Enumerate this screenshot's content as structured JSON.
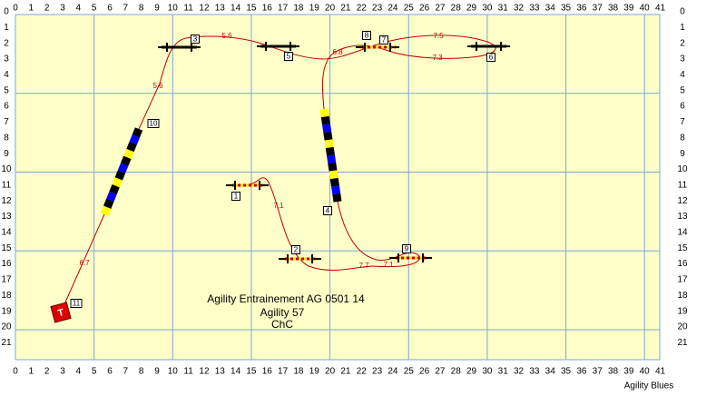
{
  "axis": {
    "x_labels": [
      0,
      1,
      2,
      3,
      4,
      5,
      6,
      7,
      8,
      9,
      10,
      11,
      12,
      13,
      14,
      15,
      16,
      17,
      18,
      19,
      20,
      21,
      22,
      23,
      24,
      25,
      26,
      27,
      28,
      29,
      30,
      31,
      32,
      33,
      34,
      35,
      36,
      37,
      38,
      39,
      40,
      41
    ],
    "y_labels": [
      0,
      1,
      2,
      3,
      4,
      5,
      6,
      7,
      8,
      9,
      10,
      11,
      12,
      13,
      14,
      15,
      16,
      17,
      18,
      19,
      20,
      21
    ]
  },
  "start_label": "T",
  "obstacles": [
    "1",
    "2",
    "3",
    "4",
    "5",
    "6",
    "7",
    "8",
    "9",
    "10",
    "11"
  ],
  "distances": [
    "5.6",
    "5.6",
    "6.7",
    "6.8",
    "7.5",
    "7.3",
    "7.1",
    "7.7",
    "7.1"
  ],
  "caption": [
    "Agility Entrainement AG 0501 14",
    "Agility 57",
    "ChC"
  ],
  "footer": "Agility Blues"
}
